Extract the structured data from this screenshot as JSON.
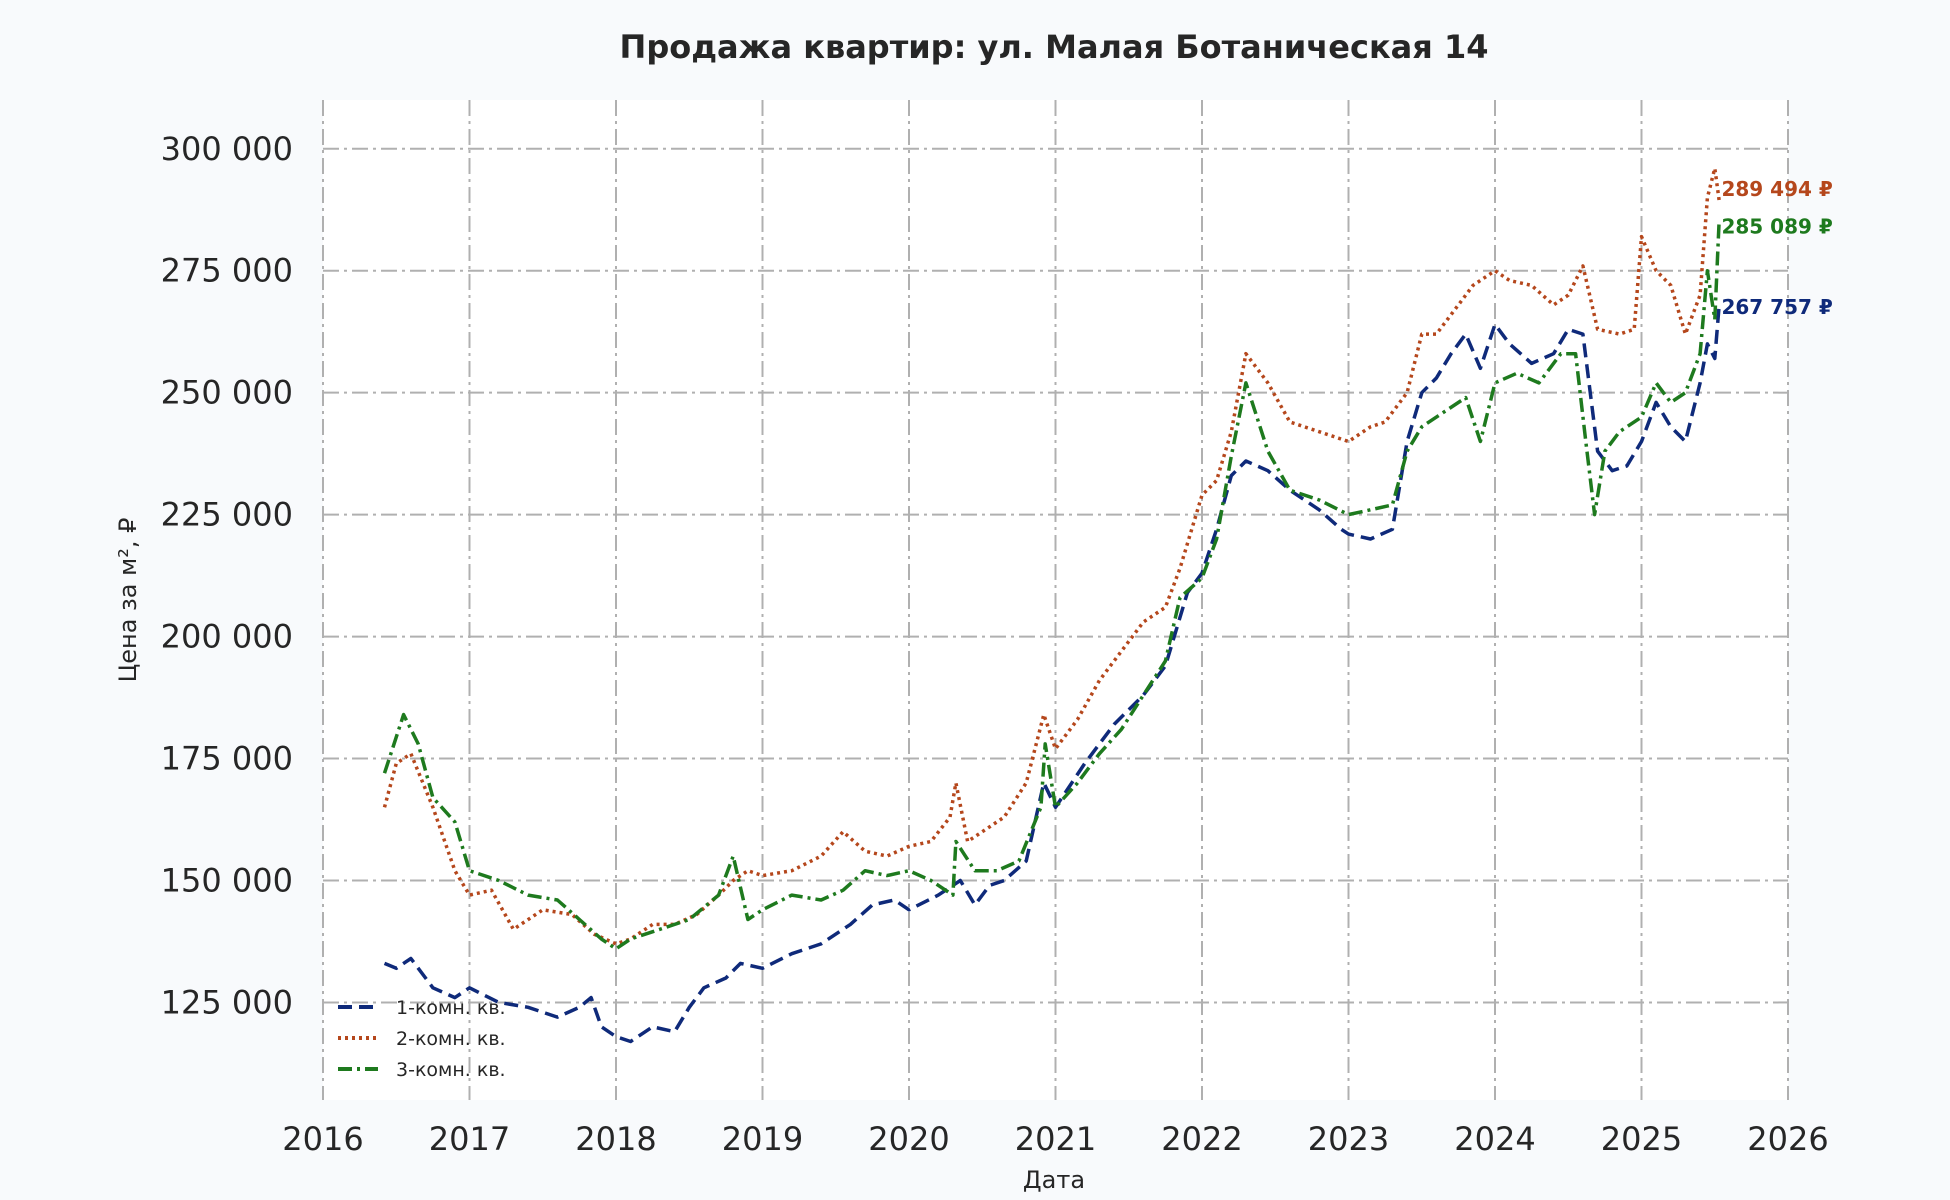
{
  "chart_data": {
    "type": "line",
    "title": "Продажа квартир: ул. Малая Ботаническая 14",
    "xlabel": "Дата",
    "ylabel": "Цена за м², ₽",
    "xlim": [
      2016,
      2026
    ],
    "ylim": [
      105000,
      310000
    ],
    "x_ticks": [
      "2016",
      "2017",
      "2018",
      "2019",
      "2020",
      "2021",
      "2022",
      "2023",
      "2024",
      "2025",
      "2026"
    ],
    "y_ticks": [
      {
        "value": 125000,
        "label": "125 000"
      },
      {
        "value": 150000,
        "label": "150 000"
      },
      {
        "value": 175000,
        "label": "175 000"
      },
      {
        "value": 200000,
        "label": "200 000"
      },
      {
        "value": 225000,
        "label": "225 000"
      },
      {
        "value": 250000,
        "label": "250 000"
      },
      {
        "value": 275000,
        "label": "275 000"
      },
      {
        "value": 300000,
        "label": "300 000"
      }
    ],
    "grid": true,
    "legend_position": "lower-left",
    "series": [
      {
        "name": "1-комн. кв.",
        "color": "#0f2a7a",
        "style": "dashed",
        "end_label": "267 757 ₽",
        "x": [
          2016.42,
          2016.5,
          2016.6,
          2016.75,
          2016.9,
          2017.0,
          2017.2,
          2017.4,
          2017.6,
          2017.75,
          2017.83,
          2017.9,
          2018.0,
          2018.1,
          2018.25,
          2018.4,
          2018.5,
          2018.6,
          2018.75,
          2018.85,
          2019.0,
          2019.2,
          2019.4,
          2019.6,
          2019.75,
          2019.9,
          2020.0,
          2020.2,
          2020.35,
          2020.45,
          2020.55,
          2020.65,
          2020.8,
          2020.92,
          2021.0,
          2021.2,
          2021.4,
          2021.6,
          2021.75,
          2021.9,
          2022.0,
          2022.1,
          2022.2,
          2022.3,
          2022.45,
          2022.6,
          2022.8,
          2022.95,
          2023.0,
          2023.15,
          2023.3,
          2023.4,
          2023.5,
          2023.6,
          2023.7,
          2023.8,
          2023.9,
          2024.0,
          2024.1,
          2024.25,
          2024.4,
          2024.5,
          2024.6,
          2024.7,
          2024.8,
          2024.9,
          2025.0,
          2025.1,
          2025.2,
          2025.3,
          2025.4,
          2025.45,
          2025.5,
          2025.53
        ],
        "y": [
          133000,
          132000,
          134000,
          128000,
          126000,
          128000,
          125000,
          124000,
          122000,
          124000,
          126000,
          120000,
          118000,
          117000,
          120000,
          119000,
          124000,
          128000,
          130000,
          133000,
          132000,
          135000,
          137000,
          141000,
          145000,
          146000,
          144000,
          147000,
          150000,
          145000,
          149000,
          150000,
          154000,
          170000,
          165000,
          174000,
          182000,
          188000,
          194000,
          209000,
          213000,
          222000,
          233000,
          236000,
          234000,
          230000,
          226000,
          222000,
          221000,
          220000,
          222000,
          240000,
          250000,
          253000,
          258000,
          262000,
          255000,
          264000,
          260000,
          256000,
          258000,
          263000,
          262000,
          238000,
          234000,
          235000,
          240000,
          248000,
          243000,
          240000,
          252000,
          260000,
          257000,
          267757
        ]
      },
      {
        "name": "2-комн. кв.",
        "color": "#b5471c",
        "style": "dotted",
        "end_label": "289 494 ₽",
        "x": [
          2016.42,
          2016.5,
          2016.6,
          2016.75,
          2016.9,
          2017.0,
          2017.15,
          2017.3,
          2017.5,
          2017.7,
          2017.85,
          2018.0,
          2018.1,
          2018.25,
          2018.4,
          2018.55,
          2018.7,
          2018.8,
          2018.9,
          2019.0,
          2019.2,
          2019.4,
          2019.55,
          2019.7,
          2019.85,
          2020.0,
          2020.15,
          2020.28,
          2020.32,
          2020.4,
          2020.5,
          2020.65,
          2020.8,
          2020.92,
          2021.0,
          2021.15,
          2021.3,
          2021.45,
          2021.6,
          2021.75,
          2021.85,
          2022.0,
          2022.1,
          2022.2,
          2022.3,
          2022.45,
          2022.6,
          2022.8,
          2023.0,
          2023.15,
          2023.25,
          2023.4,
          2023.5,
          2023.6,
          2023.75,
          2023.85,
          2024.0,
          2024.1,
          2024.25,
          2024.4,
          2024.5,
          2024.6,
          2024.7,
          2024.85,
          2024.95,
          2025.0,
          2025.1,
          2025.2,
          2025.3,
          2025.4,
          2025.45,
          2025.5,
          2025.53
        ],
        "y": [
          165000,
          174000,
          176000,
          165000,
          152000,
          147000,
          148000,
          140000,
          144000,
          143000,
          139000,
          137000,
          138000,
          141000,
          141000,
          143000,
          147000,
          150000,
          152000,
          151000,
          152000,
          155000,
          160000,
          156000,
          155000,
          157000,
          158000,
          163000,
          170000,
          158000,
          160000,
          163000,
          170000,
          184000,
          177000,
          183000,
          191000,
          197000,
          203000,
          206000,
          214000,
          229000,
          232000,
          242000,
          258000,
          252000,
          244000,
          242000,
          240000,
          243000,
          244000,
          250000,
          262000,
          262000,
          268000,
          272000,
          275000,
          273000,
          272000,
          268000,
          270000,
          276000,
          263000,
          262000,
          263000,
          282000,
          275000,
          272000,
          262000,
          270000,
          290000,
          296000,
          289494
        ]
      },
      {
        "name": "3-комн. кв.",
        "color": "#1e7a1e",
        "style": "dashdot",
        "end_label": "285 089 ₽",
        "x": [
          2016.42,
          2016.55,
          2016.65,
          2016.75,
          2016.9,
          2017.0,
          2017.2,
          2017.4,
          2017.6,
          2017.75,
          2017.9,
          2018.0,
          2018.1,
          2018.3,
          2018.5,
          2018.7,
          2018.8,
          2018.9,
          2019.0,
          2019.2,
          2019.4,
          2019.55,
          2019.7,
          2019.85,
          2020.0,
          2020.15,
          2020.3,
          2020.32,
          2020.45,
          2020.6,
          2020.75,
          2020.9,
          2020.93,
          2021.0,
          2021.15,
          2021.3,
          2021.45,
          2021.6,
          2021.75,
          2021.85,
          2022.0,
          2022.1,
          2022.2,
          2022.3,
          2022.45,
          2022.6,
          2022.8,
          2023.0,
          2023.15,
          2023.3,
          2023.4,
          2023.5,
          2023.65,
          2023.8,
          2023.9,
          2024.0,
          2024.15,
          2024.3,
          2024.45,
          2024.55,
          2024.62,
          2024.68,
          2024.75,
          2024.85,
          2025.0,
          2025.1,
          2025.2,
          2025.3,
          2025.4,
          2025.45,
          2025.5,
          2025.53
        ],
        "y": [
          172000,
          184000,
          178000,
          167000,
          162000,
          152000,
          150000,
          147000,
          146000,
          142000,
          138000,
          136000,
          138000,
          140000,
          142000,
          147000,
          155000,
          142000,
          144000,
          147000,
          146000,
          148000,
          152000,
          151000,
          152000,
          150000,
          147000,
          158000,
          152000,
          152000,
          154000,
          165000,
          178000,
          165000,
          170000,
          176000,
          181000,
          188000,
          195000,
          208000,
          212000,
          220000,
          237000,
          252000,
          238000,
          230000,
          228000,
          225000,
          226000,
          227000,
          238000,
          243000,
          246000,
          249000,
          240000,
          252000,
          254000,
          252000,
          258000,
          258000,
          240000,
          225000,
          238000,
          242000,
          245000,
          252000,
          248000,
          250000,
          258000,
          275000,
          265000,
          285089
        ]
      }
    ]
  }
}
